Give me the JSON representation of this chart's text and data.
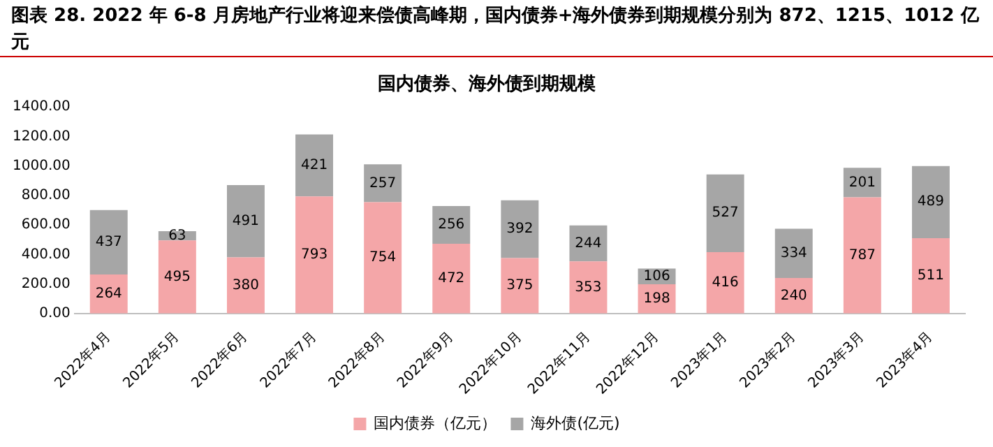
{
  "chart_data": {
    "type": "bar",
    "title": "图表 28. 2022 年 6-8 月房地产行业将迎来偿债高峰期，国内债券+海外债券到期规模分别为 872、1215、1012 亿元",
    "subtitle": "国内债券、海外债到期规模",
    "categories": [
      "2022年4月",
      "2022年5月",
      "2022年6月",
      "2022年7月",
      "2022年8月",
      "2022年9月",
      "2022年10月",
      "2022年11月",
      "2022年12月",
      "2023年1月",
      "2023年2月",
      "2023年3月",
      "2023年4月"
    ],
    "series": [
      {
        "name": "国内债券（亿元）",
        "color": "#f4a6a8",
        "values": [
          264,
          495,
          380,
          793,
          754,
          472,
          375,
          353,
          198,
          416,
          240,
          787,
          511
        ]
      },
      {
        "name": "海外债(亿元)",
        "color": "#a6a6a6",
        "values": [
          437,
          63,
          491,
          421,
          257,
          256,
          392,
          244,
          106,
          527,
          334,
          201,
          489
        ]
      }
    ],
    "stacked": true,
    "data_labels": true,
    "legend": "bottom",
    "grid": false,
    "ylim": [
      0,
      1400
    ],
    "yticks": [
      {
        "value": 0,
        "label": "0.00"
      },
      {
        "value": 200,
        "label": "200.00"
      },
      {
        "value": 400,
        "label": "400.00"
      },
      {
        "value": 600,
        "label": "600.00"
      },
      {
        "value": 800,
        "label": "800.00"
      },
      {
        "value": 1000,
        "label": "1000.00"
      },
      {
        "value": 1200,
        "label": "1200.00"
      },
      {
        "value": 1400,
        "label": "1400.00"
      }
    ]
  }
}
